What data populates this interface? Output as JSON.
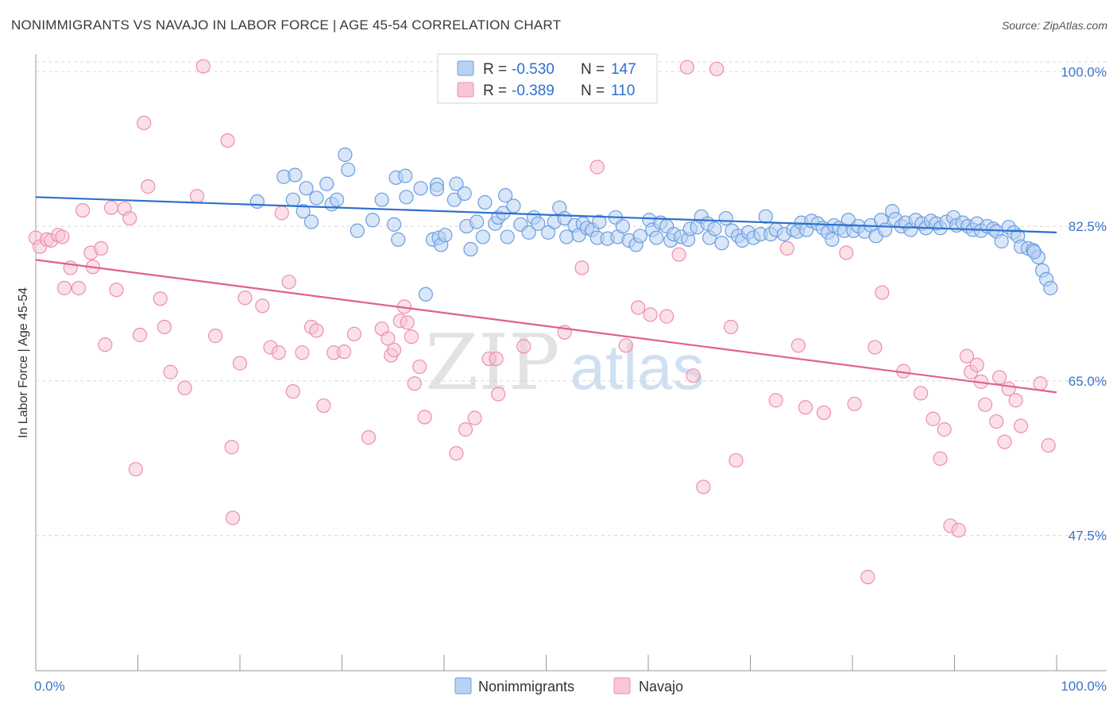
{
  "title": "NONIMMIGRANTS VS NAVAJO IN LABOR FORCE | AGE 45-54 CORRELATION CHART",
  "source": "Source: ZipAtlas.com",
  "watermark": {
    "zip": "ZIP",
    "atlas": "atlas"
  },
  "legend_top": [
    {
      "r_label": "R =",
      "r_value": "-0.530",
      "n_label": "N =",
      "n_value": "147"
    },
    {
      "r_label": "R =",
      "r_value": "-0.389",
      "n_label": "N =",
      "n_value": "110"
    }
  ],
  "legend_bottom": [
    "Nonimmigrants",
    "Navajo"
  ],
  "colors": {
    "blue_fill": "#b8d2f3",
    "blue_stroke": "#6b9ee0",
    "blue_line": "#2f6fd0",
    "pink_fill": "#f8c6d6",
    "pink_stroke": "#ec8fad",
    "pink_line": "#e0608f",
    "value_text": "#2f6fd0",
    "grid": "#d8d8d8"
  },
  "chart_data": {
    "type": "scatter",
    "title": "NONIMMIGRANTS VS NAVAJO IN LABOR FORCE | AGE 45-54 CORRELATION CHART",
    "xlabel": "",
    "ylabel": "In Labor Force | Age 45-54",
    "xlim": [
      0,
      100
    ],
    "ylim": [
      32.2,
      102
    ],
    "x_tick_labels": [
      "0.0%",
      "100.0%"
    ],
    "y_ticks": [
      47.5,
      65.0,
      82.5,
      100.0
    ],
    "y_tick_labels": [
      "47.5%",
      "65.0%",
      "82.5%",
      "100.0%"
    ],
    "grid": "horizontal dashed",
    "series": [
      {
        "name": "Nonimmigrants",
        "r": -0.53,
        "n": 147,
        "trend": {
          "x": [
            0,
            100
          ],
          "y": [
            85.8,
            81.8
          ]
        },
        "points": [
          [
            21.7,
            85.3
          ],
          [
            24.3,
            88.1
          ],
          [
            25.2,
            85.5
          ],
          [
            25.4,
            88.3
          ],
          [
            26.2,
            84.2
          ],
          [
            26.5,
            86.8
          ],
          [
            27.0,
            83.0
          ],
          [
            27.5,
            85.7
          ],
          [
            28.5,
            87.3
          ],
          [
            29.0,
            85.0
          ],
          [
            29.5,
            85.5
          ],
          [
            30.3,
            90.6
          ],
          [
            30.6,
            88.9
          ],
          [
            31.5,
            82.0
          ],
          [
            33.0,
            83.2
          ],
          [
            33.9,
            85.5
          ],
          [
            35.1,
            82.7
          ],
          [
            35.3,
            88.0
          ],
          [
            35.5,
            81.0
          ],
          [
            36.2,
            88.2
          ],
          [
            36.3,
            85.8
          ],
          [
            37.7,
            86.8
          ],
          [
            38.9,
            81.0
          ],
          [
            39.3,
            87.2
          ],
          [
            39.3,
            86.7
          ],
          [
            39.5,
            81.2
          ],
          [
            39.7,
            80.4
          ],
          [
            40.1,
            81.5
          ],
          [
            41.0,
            85.5
          ],
          [
            41.2,
            87.3
          ],
          [
            42.0,
            86.2
          ],
          [
            42.2,
            82.5
          ],
          [
            42.6,
            79.9
          ],
          [
            43.2,
            83.0
          ],
          [
            43.8,
            81.3
          ],
          [
            44.0,
            85.2
          ],
          [
            45.0,
            82.8
          ],
          [
            45.3,
            83.5
          ],
          [
            45.8,
            84.0
          ],
          [
            46.0,
            86.0
          ],
          [
            46.2,
            81.3
          ],
          [
            46.8,
            84.8
          ],
          [
            47.5,
            82.7
          ],
          [
            48.3,
            81.8
          ],
          [
            48.8,
            83.5
          ],
          [
            49.2,
            82.8
          ],
          [
            50.2,
            81.8
          ],
          [
            50.8,
            83.0
          ],
          [
            51.3,
            84.6
          ],
          [
            51.8,
            83.4
          ],
          [
            52.0,
            81.3
          ],
          [
            52.8,
            82.6
          ],
          [
            53.2,
            81.5
          ],
          [
            53.6,
            82.8
          ],
          [
            54.0,
            82.3
          ],
          [
            54.5,
            82.1
          ],
          [
            55.0,
            81.2
          ],
          [
            55.2,
            83.0
          ],
          [
            56.0,
            81.1
          ],
          [
            56.8,
            83.5
          ],
          [
            57.0,
            81.3
          ],
          [
            57.5,
            82.5
          ],
          [
            58.1,
            80.9
          ],
          [
            58.8,
            80.4
          ],
          [
            59.2,
            81.4
          ],
          [
            60.1,
            83.2
          ],
          [
            60.4,
            82.1
          ],
          [
            60.8,
            81.2
          ],
          [
            61.2,
            82.9
          ],
          [
            61.8,
            82.5
          ],
          [
            62.2,
            80.9
          ],
          [
            62.5,
            81.6
          ],
          [
            63.2,
            81.3
          ],
          [
            63.9,
            81.0
          ],
          [
            64.1,
            82.2
          ],
          [
            64.8,
            82.4
          ],
          [
            65.2,
            83.6
          ],
          [
            65.8,
            82.8
          ],
          [
            66.0,
            81.2
          ],
          [
            66.5,
            82.2
          ],
          [
            67.2,
            80.6
          ],
          [
            67.6,
            83.4
          ],
          [
            68.2,
            82.0
          ],
          [
            68.8,
            81.4
          ],
          [
            69.2,
            80.9
          ],
          [
            69.8,
            81.8
          ],
          [
            70.3,
            81.2
          ],
          [
            71.0,
            81.6
          ],
          [
            71.5,
            83.6
          ],
          [
            72.0,
            81.6
          ],
          [
            72.5,
            82.1
          ],
          [
            73.3,
            81.6
          ],
          [
            74.2,
            82.1
          ],
          [
            74.6,
            81.9
          ],
          [
            75.0,
            82.9
          ],
          [
            75.5,
            82.1
          ],
          [
            76.0,
            83.1
          ],
          [
            76.6,
            82.8
          ],
          [
            77.1,
            82.3
          ],
          [
            77.6,
            81.8
          ],
          [
            78.2,
            82.6
          ],
          [
            78.7,
            82.3
          ],
          [
            79.2,
            82.0
          ],
          [
            79.6,
            83.2
          ],
          [
            80.1,
            82.0
          ],
          [
            80.6,
            82.5
          ],
          [
            81.2,
            81.9
          ],
          [
            81.8,
            82.6
          ],
          [
            82.3,
            81.4
          ],
          [
            82.8,
            83.2
          ],
          [
            83.2,
            82.1
          ],
          [
            83.9,
            84.2
          ],
          [
            84.2,
            83.3
          ],
          [
            84.8,
            82.5
          ],
          [
            85.2,
            82.9
          ],
          [
            85.7,
            82.1
          ],
          [
            86.2,
            83.2
          ],
          [
            86.8,
            82.8
          ],
          [
            87.2,
            82.3
          ],
          [
            87.7,
            83.1
          ],
          [
            88.2,
            82.8
          ],
          [
            88.6,
            82.3
          ],
          [
            89.2,
            83.0
          ],
          [
            89.9,
            83.5
          ],
          [
            90.2,
            82.6
          ],
          [
            90.8,
            82.9
          ],
          [
            91.3,
            82.5
          ],
          [
            91.8,
            82.1
          ],
          [
            92.2,
            82.8
          ],
          [
            92.6,
            82.0
          ],
          [
            93.2,
            82.5
          ],
          [
            93.8,
            82.2
          ],
          [
            94.1,
            81.9
          ],
          [
            94.6,
            80.8
          ],
          [
            95.3,
            82.4
          ],
          [
            95.8,
            81.8
          ],
          [
            96.2,
            81.4
          ],
          [
            96.5,
            80.2
          ],
          [
            97.2,
            80.0
          ],
          [
            97.7,
            79.8
          ],
          [
            98.2,
            79.0
          ],
          [
            98.6,
            77.5
          ],
          [
            99.0,
            76.5
          ],
          [
            99.4,
            75.5
          ],
          [
            38.2,
            74.8
          ],
          [
            97.8,
            79.6
          ],
          [
            78.0,
            81.0
          ]
        ]
      },
      {
        "name": "Navajo",
        "r": -0.389,
        "n": 110,
        "trend": {
          "x": [
            0,
            100
          ],
          "y": [
            78.7,
            63.7
          ]
        },
        "points": [
          [
            0.0,
            81.2
          ],
          [
            0.4,
            80.2
          ],
          [
            1.1,
            81.0
          ],
          [
            1.5,
            80.9
          ],
          [
            2.2,
            81.5
          ],
          [
            2.6,
            81.3
          ],
          [
            2.8,
            75.5
          ],
          [
            3.4,
            77.8
          ],
          [
            4.2,
            75.5
          ],
          [
            4.6,
            84.3
          ],
          [
            5.4,
            79.5
          ],
          [
            5.6,
            77.9
          ],
          [
            6.4,
            80.0
          ],
          [
            6.8,
            69.1
          ],
          [
            7.4,
            84.6
          ],
          [
            7.9,
            75.3
          ],
          [
            8.7,
            84.5
          ],
          [
            9.2,
            83.4
          ],
          [
            9.8,
            55.0
          ],
          [
            10.2,
            70.2
          ],
          [
            10.6,
            94.2
          ],
          [
            11.0,
            87.0
          ],
          [
            12.2,
            74.3
          ],
          [
            12.6,
            71.1
          ],
          [
            13.2,
            66.0
          ],
          [
            14.6,
            64.2
          ],
          [
            15.8,
            85.9
          ],
          [
            16.4,
            100.6
          ],
          [
            17.6,
            70.1
          ],
          [
            18.8,
            92.2
          ],
          [
            19.2,
            57.5
          ],
          [
            19.3,
            49.5
          ],
          [
            20.0,
            67.0
          ],
          [
            20.5,
            74.4
          ],
          [
            22.2,
            73.5
          ],
          [
            23.0,
            68.8
          ],
          [
            23.8,
            68.2
          ],
          [
            24.1,
            84.0
          ],
          [
            24.8,
            76.2
          ],
          [
            25.2,
            63.8
          ],
          [
            26.1,
            68.2
          ],
          [
            27.0,
            71.1
          ],
          [
            27.5,
            70.7
          ],
          [
            28.2,
            62.2
          ],
          [
            29.2,
            68.2
          ],
          [
            30.2,
            68.3
          ],
          [
            31.2,
            70.3
          ],
          [
            32.6,
            58.6
          ],
          [
            33.9,
            70.9
          ],
          [
            34.5,
            69.8
          ],
          [
            34.8,
            67.9
          ],
          [
            35.1,
            68.5
          ],
          [
            35.7,
            71.8
          ],
          [
            36.1,
            73.4
          ],
          [
            36.4,
            71.6
          ],
          [
            36.8,
            70.0
          ],
          [
            37.1,
            64.7
          ],
          [
            37.6,
            66.6
          ],
          [
            38.1,
            60.9
          ],
          [
            41.2,
            56.8
          ],
          [
            42.1,
            59.5
          ],
          [
            43.0,
            60.8
          ],
          [
            44.4,
            67.5
          ],
          [
            45.1,
            67.5
          ],
          [
            45.3,
            63.5
          ],
          [
            47.8,
            68.9
          ],
          [
            51.8,
            70.5
          ],
          [
            53.5,
            77.8
          ],
          [
            55.0,
            89.2
          ],
          [
            57.8,
            69.0
          ],
          [
            59.0,
            73.3
          ],
          [
            60.2,
            72.5
          ],
          [
            61.8,
            72.3
          ],
          [
            63.0,
            79.3
          ],
          [
            63.8,
            100.5
          ],
          [
            64.4,
            65.6
          ],
          [
            65.4,
            53.0
          ],
          [
            66.7,
            100.3
          ],
          [
            68.1,
            71.1
          ],
          [
            68.6,
            56.0
          ],
          [
            72.5,
            62.8
          ],
          [
            73.6,
            80.0
          ],
          [
            74.7,
            69.0
          ],
          [
            75.4,
            62.0
          ],
          [
            77.2,
            61.4
          ],
          [
            79.4,
            79.5
          ],
          [
            80.2,
            62.4
          ],
          [
            81.5,
            42.8
          ],
          [
            82.2,
            68.8
          ],
          [
            82.9,
            75.0
          ],
          [
            85.0,
            66.1
          ],
          [
            86.7,
            63.6
          ],
          [
            87.9,
            60.7
          ],
          [
            88.6,
            56.2
          ],
          [
            89.0,
            59.5
          ],
          [
            89.6,
            48.6
          ],
          [
            90.4,
            48.1
          ],
          [
            91.2,
            67.8
          ],
          [
            91.6,
            66.0
          ],
          [
            92.2,
            66.8
          ],
          [
            92.6,
            64.9
          ],
          [
            93.0,
            62.3
          ],
          [
            94.1,
            60.4
          ],
          [
            94.4,
            65.4
          ],
          [
            94.9,
            58.1
          ],
          [
            95.3,
            64.1
          ],
          [
            96.0,
            62.8
          ],
          [
            96.5,
            59.9
          ],
          [
            98.4,
            64.7
          ],
          [
            99.2,
            57.7
          ]
        ]
      }
    ]
  }
}
